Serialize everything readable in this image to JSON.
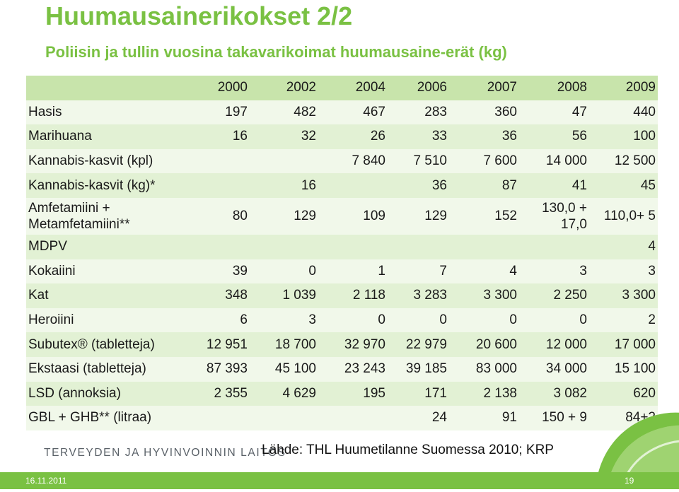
{
  "title": "Huumausainerikokset 2/2",
  "subtitle": "Poliisin ja tullin vuosina takavarikoimat huumausaine-erät (kg)",
  "table": {
    "years": [
      "2000",
      "2002",
      "2004",
      "2006",
      "2007",
      "2008",
      "2009"
    ],
    "rows": [
      {
        "label": "Hasis",
        "values": [
          "197",
          "482",
          "467",
          "283",
          "360",
          "47",
          "440"
        ]
      },
      {
        "label": "Marihuana",
        "values": [
          "16",
          "32",
          "26",
          "33",
          "36",
          "56",
          "100"
        ]
      },
      {
        "label": "Kannabis-kasvit (kpl)",
        "values": [
          "",
          "",
          "7 840",
          "7 510",
          "7 600",
          "14 000",
          "12 500"
        ]
      },
      {
        "label": "Kannabis-kasvit (kg)*",
        "values": [
          "",
          "16",
          "",
          "36",
          "87",
          "41",
          "45"
        ]
      },
      {
        "label": "Amfetamiini + Metamfetamiini**",
        "values": [
          "80",
          "129",
          "109",
          "129",
          "152",
          "130,0 + 17,0",
          "110,0+ 5"
        ]
      },
      {
        "label": "MDPV",
        "values": [
          "",
          "",
          "",
          "",
          "",
          "",
          "4"
        ]
      },
      {
        "label": "Kokaiini",
        "values": [
          "39",
          "0",
          "1",
          "7",
          "4",
          "3",
          "3"
        ]
      },
      {
        "label": "Kat",
        "values": [
          "348",
          "1 039",
          "2 118",
          "3 283",
          "3 300",
          "2 250",
          "3 300"
        ]
      },
      {
        "label": "Heroiini",
        "values": [
          "6",
          "3",
          "0",
          "0",
          "0",
          "0",
          "2"
        ]
      },
      {
        "label": "Subutex® (tabletteja)",
        "values": [
          "12 951",
          "18 700",
          "32 970",
          "22 979",
          "20 600",
          "12 000",
          "17 000"
        ]
      },
      {
        "label": "Ekstaasi (tabletteja)",
        "values": [
          "87 393",
          "45 100",
          "23 243",
          "39 185",
          "83 000",
          "34 000",
          "15 100"
        ]
      },
      {
        "label": "LSD (annoksia)",
        "values": [
          "2 355",
          "4 629",
          "195",
          "171",
          "2 138",
          "3 082",
          "620"
        ]
      },
      {
        "label": "GBL + GHB** (litraa)",
        "values": [
          "",
          "",
          "",
          "24",
          "91",
          "150 + 9",
          "84+2"
        ]
      }
    ]
  },
  "logo_text": "TERVEYDEN JA HYVINVOINNIN LAITOS",
  "source": "Lähde:  THL Huumetilanne Suomessa 2010; KRP",
  "footer": {
    "date": "16.11.2011",
    "page": "19"
  },
  "colors": {
    "accent": "#7ac143",
    "row_a": "#e2f1d4",
    "row_b": "#f1f8ea",
    "header": "#c8e4ab"
  }
}
